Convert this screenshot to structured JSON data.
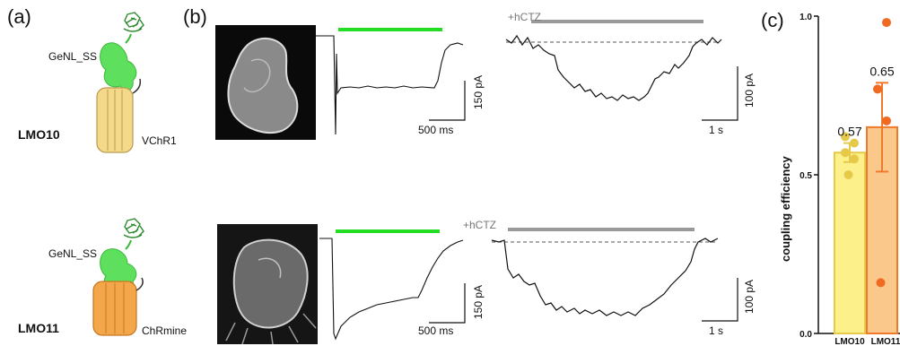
{
  "panels": {
    "a": "(a)",
    "b": "(b)",
    "c": "(c)"
  },
  "constructs": [
    {
      "name": "LMO10",
      "luciferase": "GeNL_SS",
      "channel": "VChR1",
      "color": "#f5d98a"
    },
    {
      "name": "LMO11",
      "luciferase": "GeNL_SS",
      "channel": "ChRmine",
      "color": "#f4a64a"
    }
  ],
  "traces": {
    "light_bar_color": "#22dd22",
    "hctz_bar_color": "#999999",
    "hctz_label": "+hCTZ",
    "row1": {
      "current_scale": "150 pA",
      "time_scale": "500 ms",
      "hctz_current_scale": "100 pA",
      "hctz_time_scale": "1 s"
    },
    "row2": {
      "current_scale": "150 pA",
      "time_scale": "500 ms",
      "hctz_current_scale": "100 pA",
      "hctz_time_scale": "1 s"
    }
  },
  "chart_data": {
    "type": "bar",
    "categories": [
      "LMO10",
      "LMO11"
    ],
    "values": [
      0.57,
      0.65
    ],
    "data_labels": [
      "0.57",
      "0.65"
    ],
    "error": [
      0.03,
      0.14
    ],
    "points": [
      [
        0.5,
        0.55,
        0.57,
        0.6,
        0.62
      ],
      [
        0.16,
        0.67,
        0.77,
        0.98
      ]
    ],
    "ylabel": "coupling efficiency",
    "ylim": [
      0,
      1.0
    ],
    "yticks": [
      "0.0",
      "0.5",
      "1.0"
    ],
    "bar_fill": [
      "#fbf08a",
      "#fbc88c"
    ],
    "bar_edge": [
      "#e7c94a",
      "#f07a2c"
    ],
    "point_color": [
      "#e7c94a",
      "#f06a22"
    ]
  }
}
